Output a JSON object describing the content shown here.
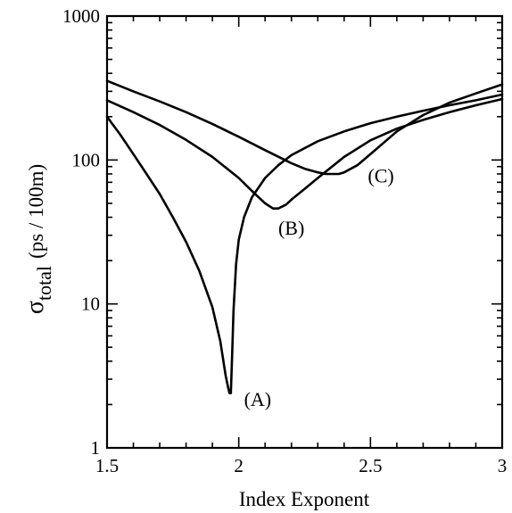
{
  "chart_data": {
    "type": "line",
    "title": "",
    "xlabel": "Index Exponent",
    "ylabel_main": "σ",
    "ylabel_sub": "total",
    "ylabel_unit": "(ps / 100m)",
    "xlim": [
      1.5,
      3.0
    ],
    "ylim": [
      1,
      1000
    ],
    "yscale": "log",
    "grid": false,
    "x_ticks": [
      1.5,
      2.0,
      2.5,
      3.0
    ],
    "x_tick_labels": [
      "1.5",
      "2",
      "2.5",
      "3"
    ],
    "y_ticks": [
      1,
      10,
      100,
      1000
    ],
    "y_tick_labels": [
      "1",
      "10",
      "100",
      "1000"
    ],
    "series": [
      {
        "label": "(A)",
        "label_at": [
          2.02,
          2.2
        ],
        "x": [
          1.5,
          1.55,
          1.6,
          1.65,
          1.7,
          1.75,
          1.8,
          1.85,
          1.9,
          1.93,
          1.95,
          1.96,
          1.965,
          1.97,
          1.975,
          1.98,
          1.99,
          2.0,
          2.02,
          2.05,
          2.1,
          2.15,
          2.2,
          2.3,
          2.4,
          2.5,
          2.6,
          2.7,
          2.8,
          2.9,
          3.0
        ],
        "y": [
          200,
          150,
          110,
          80,
          58,
          40,
          27,
          17,
          9.5,
          5.5,
          3.2,
          2.6,
          2.4,
          2.4,
          4.5,
          9,
          19,
          28,
          40,
          55,
          75,
          92,
          108,
          135,
          158,
          180,
          200,
          220,
          240,
          260,
          285
        ]
      },
      {
        "label": "(B)",
        "label_at": [
          2.15,
          34
        ],
        "x": [
          1.5,
          1.6,
          1.7,
          1.8,
          1.9,
          2.0,
          2.05,
          2.1,
          2.13,
          2.15,
          2.18,
          2.2,
          2.25,
          2.3,
          2.4,
          2.5,
          2.6,
          2.7,
          2.8,
          2.9,
          3.0
        ],
        "y": [
          260,
          215,
          175,
          138,
          105,
          75,
          61,
          50,
          46,
          46,
          49,
          53,
          63,
          75,
          105,
          137,
          165,
          190,
          215,
          240,
          265
        ]
      },
      {
        "label": "(C)",
        "label_at": [
          2.49,
          78
        ],
        "x": [
          1.5,
          1.6,
          1.7,
          1.8,
          1.9,
          2.0,
          2.1,
          2.2,
          2.25,
          2.3,
          2.33,
          2.35,
          2.38,
          2.4,
          2.45,
          2.5,
          2.6,
          2.7,
          2.8,
          2.9,
          3.0
        ],
        "y": [
          355,
          300,
          255,
          215,
          178,
          145,
          117,
          95,
          87,
          82,
          80,
          80,
          80,
          82,
          92,
          110,
          158,
          205,
          250,
          290,
          335
        ]
      }
    ]
  }
}
